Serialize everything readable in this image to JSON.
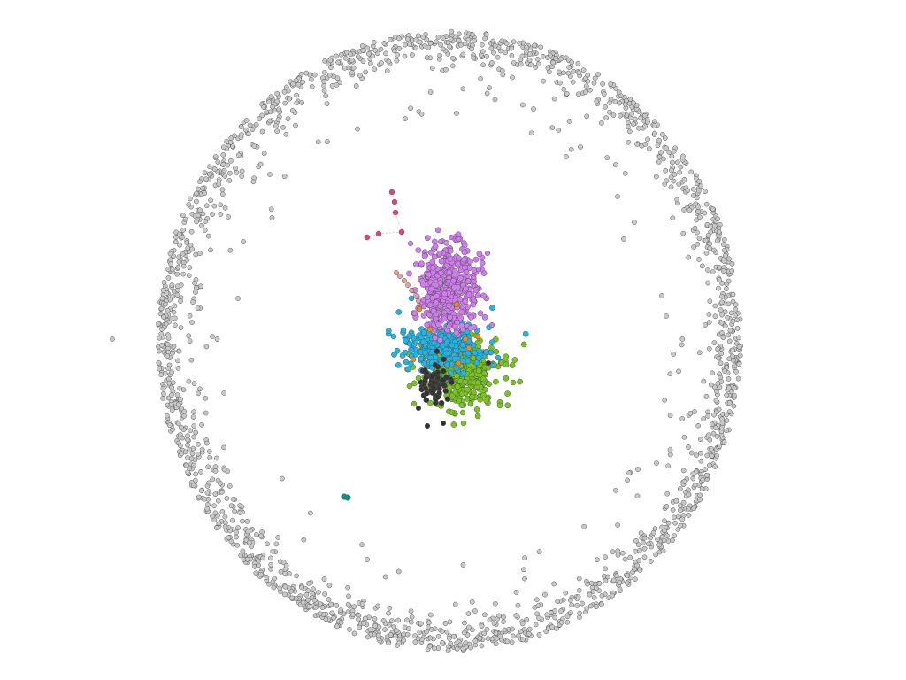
{
  "graph": {
    "layout": "force-directed",
    "background": "#ffffff",
    "node_outline": "#555555",
    "communities": [
      {
        "id": "peripheral-isolates",
        "color": "#c8c8c8",
        "approx_nodes": 1900
      },
      {
        "id": "purple-cluster",
        "color": "#d07cf0",
        "approx_nodes": 420
      },
      {
        "id": "blue-cluster",
        "color": "#1fb5e6",
        "approx_nodes": 260
      },
      {
        "id": "green-cluster",
        "color": "#77c41c",
        "approx_nodes": 380
      },
      {
        "id": "black-cluster",
        "color": "#333333",
        "approx_nodes": 60
      },
      {
        "id": "orange-nodes",
        "color": "#f08a16",
        "approx_nodes": 8
      },
      {
        "id": "pink-chain",
        "color": "#e0457a",
        "approx_nodes": 6
      },
      {
        "id": "salmon-chain",
        "color": "#e5a3a0",
        "approx_nodes": 7
      },
      {
        "id": "teal-pair",
        "color": "#0e9488",
        "approx_nodes": 2
      }
    ],
    "edge_color": "#f3b3c6"
  }
}
